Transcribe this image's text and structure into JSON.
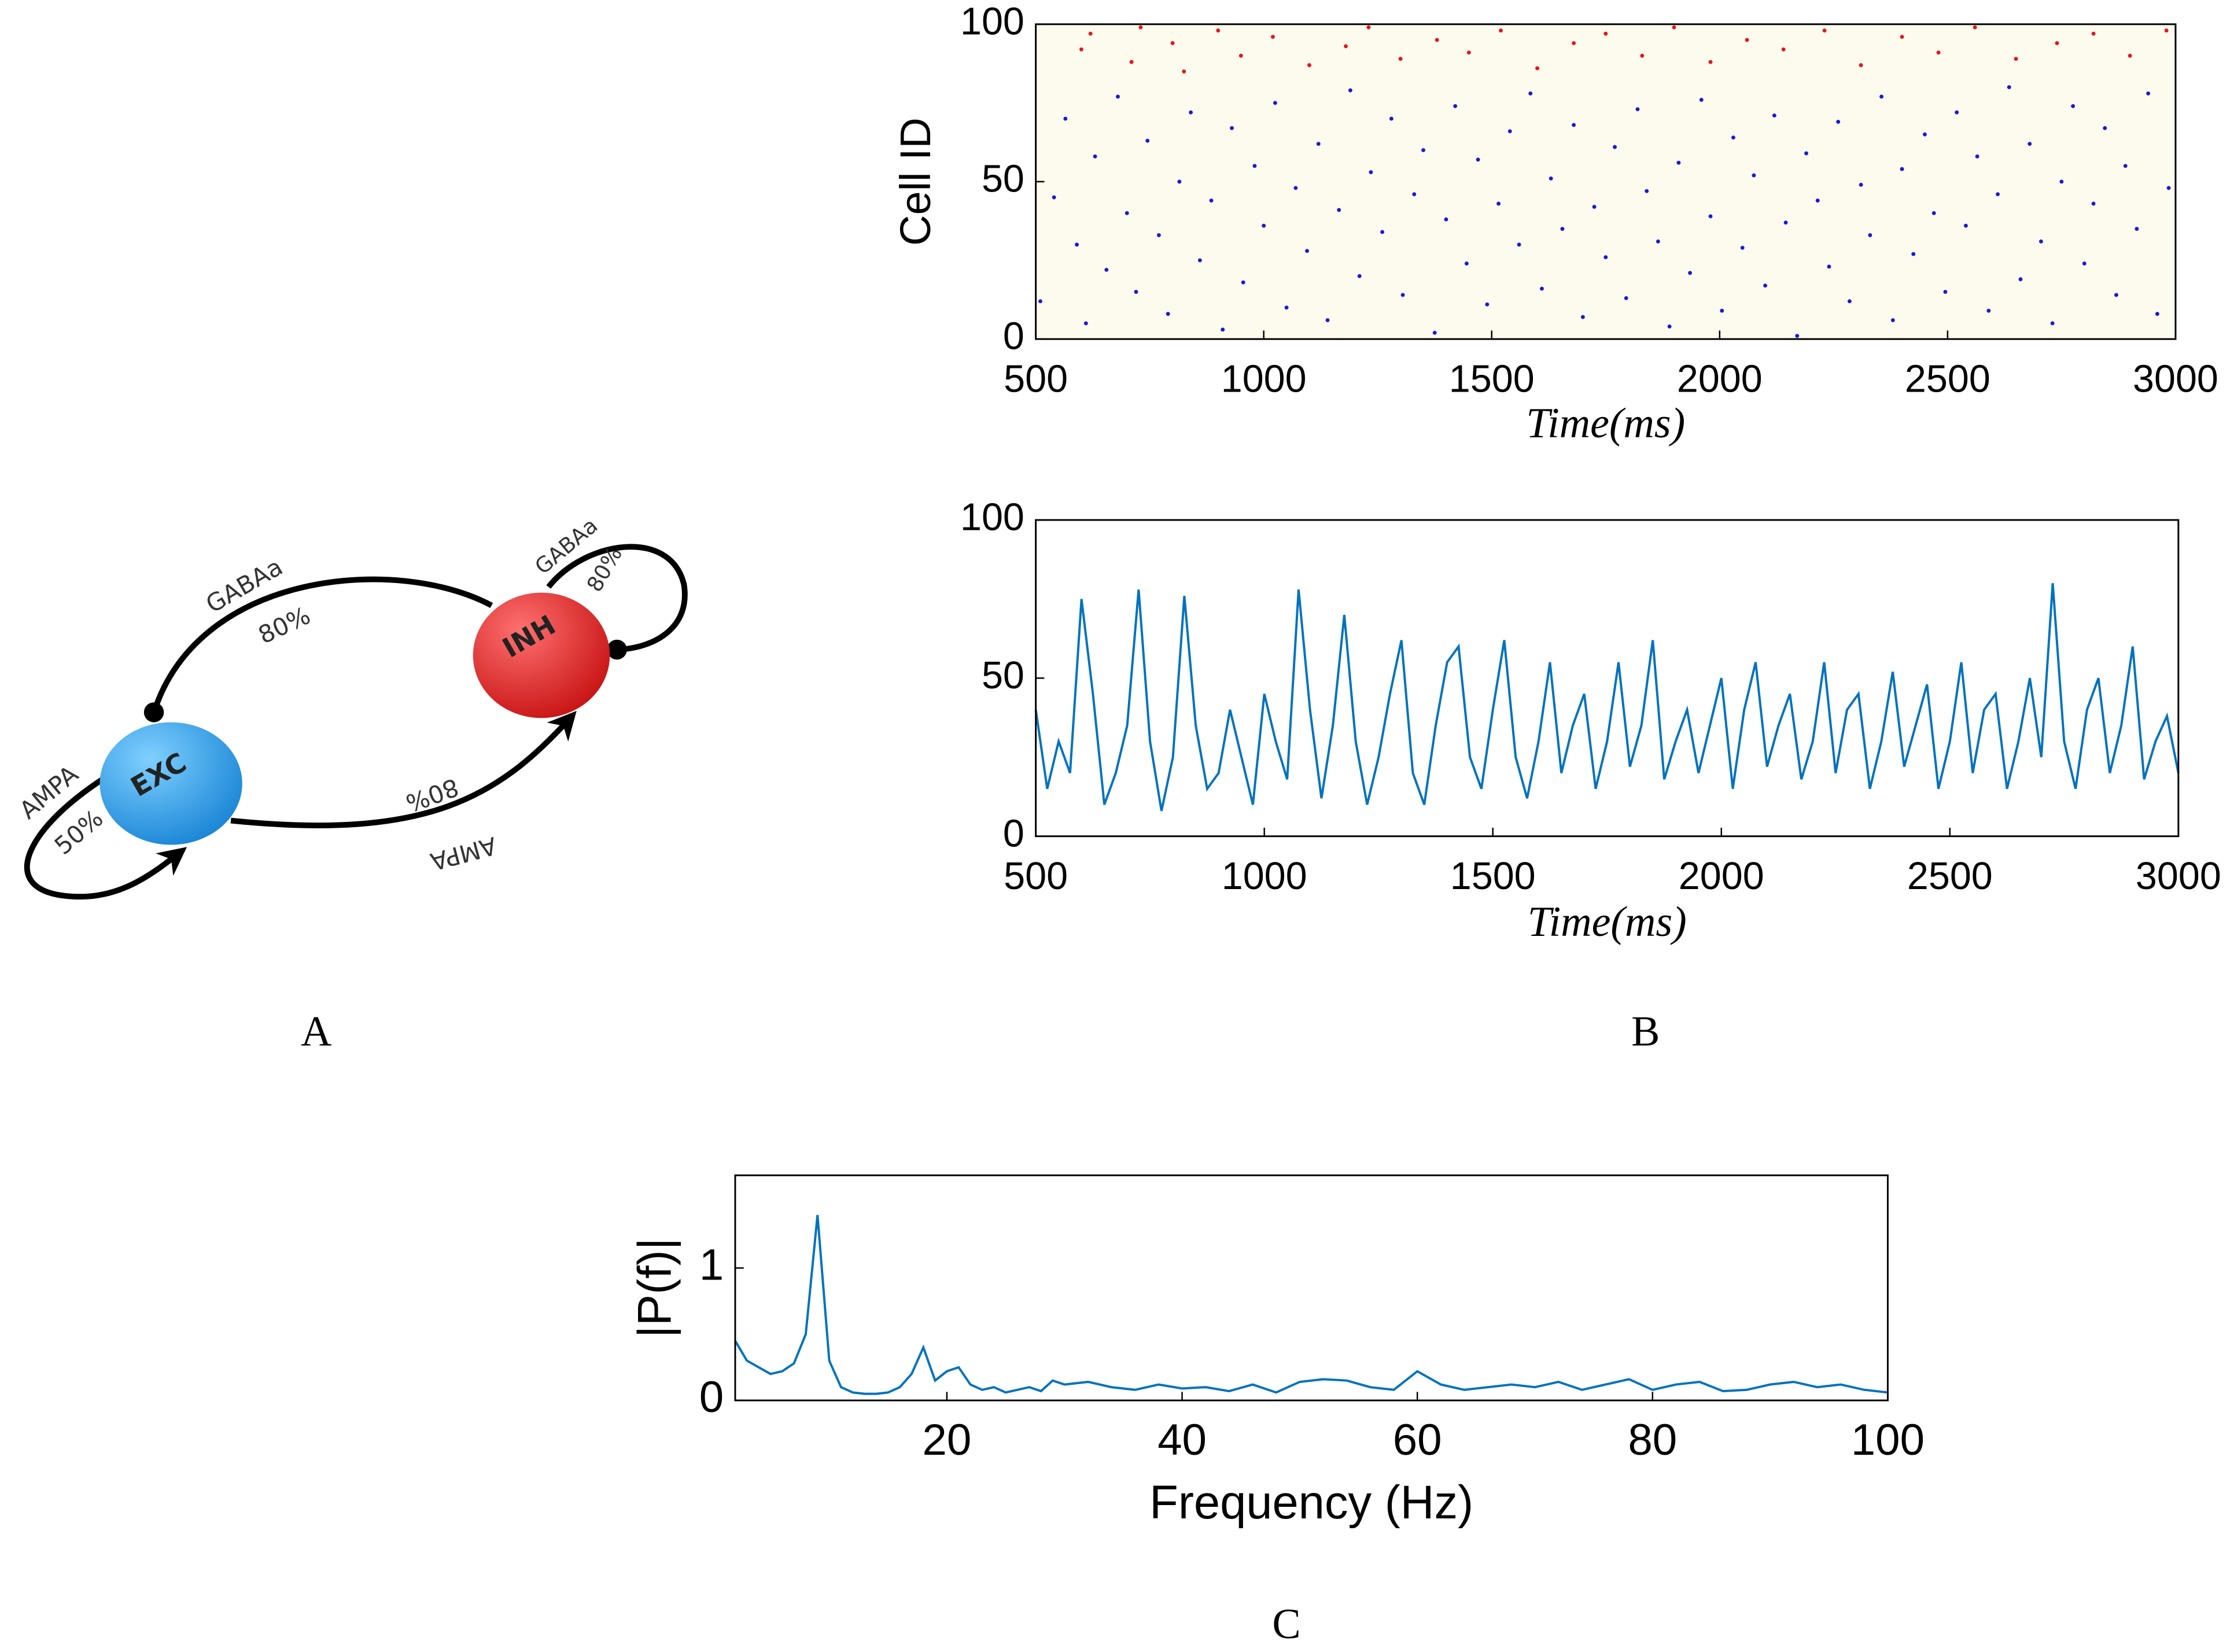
{
  "diagram": {
    "exc": "EXC",
    "inh": "INH",
    "gaba_top": "GABAa",
    "gaba_top_pct": "80%",
    "ampa_self": "AMPA",
    "ampa_self_pct": "50%",
    "ampa_cross_pct": "80%",
    "ampa_cross": "AMPA",
    "gaba_self": "GABAa",
    "gaba_self_pct": "80%"
  },
  "panel_labels": [
    "A",
    "B",
    "C"
  ],
  "chart_data": [
    {
      "type": "scatter",
      "ylabel": "Cell ID",
      "xlabel": "Time(ms)",
      "xlim": [
        500,
        3000
      ],
      "ylim": [
        0,
        100
      ],
      "xticks": [
        500,
        1000,
        1500,
        2000,
        2500,
        3000
      ],
      "yticks": [
        0,
        50,
        100
      ],
      "series": [
        {
          "color": "#1a1ad6",
          "x": [
            510,
            540,
            565,
            590,
            610,
            630,
            655,
            680,
            700,
            720,
            745,
            770,
            790,
            815,
            840,
            860,
            885,
            910,
            930,
            955,
            980,
            1000,
            1025,
            1050,
            1070,
            1095,
            1120,
            1140,
            1165,
            1190,
            1210,
            1235,
            1260,
            1280,
            1305,
            1330,
            1350,
            1375,
            1400,
            1420,
            1445,
            1470,
            1490,
            1515,
            1540,
            1560,
            1585,
            1610,
            1630,
            1655,
            1680,
            1700,
            1725,
            1750,
            1770,
            1795,
            1820,
            1840,
            1865,
            1890,
            1910,
            1935,
            1960,
            1980,
            2005,
            2030,
            2050,
            2075,
            2100,
            2120,
            2145,
            2170,
            2190,
            2215,
            2240,
            2260,
            2285,
            2310,
            2330,
            2355,
            2380,
            2400,
            2425,
            2450,
            2470,
            2495,
            2520,
            2540,
            2565,
            2590,
            2610,
            2635,
            2660,
            2680,
            2705,
            2730,
            2750,
            2775,
            2800,
            2820,
            2845,
            2870,
            2890,
            2915,
            2940,
            2960,
            2985
          ],
          "values": [
            12,
            45,
            70,
            30,
            5,
            58,
            22,
            77,
            40,
            15,
            63,
            33,
            8,
            50,
            72,
            25,
            44,
            3,
            67,
            18,
            55,
            36,
            75,
            10,
            48,
            28,
            62,
            6,
            41,
            79,
            20,
            53,
            34,
            70,
            14,
            46,
            60,
            2,
            38,
            74,
            24,
            57,
            11,
            43,
            66,
            30,
            78,
            16,
            51,
            35,
            68,
            7,
            42,
            26,
            61,
            13,
            73,
            47,
            31,
            4,
            56,
            21,
            76,
            39,
            9,
            64,
            29,
            52,
            17,
            71,
            37,
            1,
            59,
            44,
            23,
            69,
            12,
            49,
            33,
            77,
            6,
            54,
            27,
            65,
            40,
            15,
            72,
            36,
            58,
            9,
            46,
            80,
            19,
            62,
            31,
            5,
            50,
            74,
            24,
            43,
            67,
            14,
            55,
            35,
            78,
            8,
            48
          ]
        },
        {
          "color": "#e8141b",
          "x": [
            600,
            620,
            710,
            730,
            800,
            825,
            900,
            950,
            1020,
            1100,
            1180,
            1230,
            1300,
            1380,
            1450,
            1520,
            1600,
            1680,
            1750,
            1830,
            1900,
            1980,
            2060,
            2140,
            2230,
            2310,
            2400,
            2480,
            2560,
            2650,
            2740,
            2820,
            2900,
            2980
          ],
          "values": [
            92,
            97,
            88,
            99,
            94,
            85,
            98,
            90,
            96,
            87,
            93,
            99,
            89,
            95,
            91,
            98,
            86,
            94,
            97,
            90,
            99,
            88,
            95,
            92,
            98,
            87,
            96,
            91,
            99,
            89,
            94,
            97,
            90,
            98
          ]
        }
      ]
    },
    {
      "type": "line",
      "xlabel": "Time(ms)",
      "color": "#0072bd",
      "xlim": [
        500,
        3000
      ],
      "ylim": [
        0,
        100
      ],
      "xticks": [
        500,
        1000,
        1500,
        2000,
        2500,
        3000
      ],
      "yticks": [
        0,
        50,
        100
      ],
      "x": [
        500,
        525,
        550,
        575,
        600,
        625,
        650,
        675,
        700,
        725,
        750,
        775,
        800,
        825,
        850,
        875,
        900,
        925,
        950,
        975,
        1000,
        1025,
        1050,
        1075,
        1100,
        1125,
        1150,
        1175,
        1200,
        1225,
        1250,
        1275,
        1300,
        1325,
        1350,
        1375,
        1400,
        1425,
        1450,
        1475,
        1500,
        1525,
        1550,
        1575,
        1600,
        1625,
        1650,
        1675,
        1700,
        1725,
        1750,
        1775,
        1800,
        1825,
        1850,
        1875,
        1900,
        1925,
        1950,
        1975,
        2000,
        2025,
        2050,
        2075,
        2100,
        2125,
        2150,
        2175,
        2200,
        2225,
        2250,
        2275,
        2300,
        2325,
        2350,
        2375,
        2400,
        2425,
        2450,
        2475,
        2500,
        2525,
        2550,
        2575,
        2600,
        2625,
        2650,
        2675,
        2700,
        2725,
        2750,
        2775,
        2800,
        2825,
        2850,
        2875,
        2900,
        2925,
        2950,
        2975,
        3000
      ],
      "values": [
        40,
        15,
        30,
        20,
        75,
        45,
        10,
        20,
        35,
        78,
        30,
        8,
        25,
        76,
        35,
        15,
        20,
        40,
        25,
        10,
        45,
        30,
        18,
        78,
        40,
        12,
        35,
        70,
        30,
        10,
        25,
        45,
        62,
        20,
        10,
        35,
        55,
        60,
        25,
        15,
        40,
        62,
        25,
        12,
        30,
        55,
        20,
        35,
        45,
        15,
        30,
        55,
        22,
        35,
        62,
        18,
        30,
        40,
        20,
        35,
        50,
        15,
        40,
        55,
        22,
        35,
        45,
        18,
        30,
        55,
        20,
        40,
        45,
        15,
        30,
        52,
        22,
        35,
        48,
        15,
        30,
        55,
        20,
        40,
        45,
        15,
        30,
        50,
        25,
        80,
        30,
        15,
        40,
        50,
        20,
        35,
        60,
        18,
        30,
        38,
        20
      ]
    },
    {
      "type": "line",
      "xlabel": "Frequency (Hz)",
      "ylabel": "|P(f)|",
      "color": "#0072bd",
      "xlim": [
        2,
        100
      ],
      "ylim": [
        0,
        1.7
      ],
      "xticks": [
        20,
        40,
        60,
        80,
        100
      ],
      "yticks": [
        0,
        1
      ],
      "x": [
        2,
        3,
        4,
        5,
        6,
        7,
        8,
        9,
        10,
        11,
        12,
        13,
        14,
        15,
        16,
        17,
        18,
        19,
        20,
        21,
        22,
        23,
        24,
        25,
        26,
        27,
        28,
        29,
        30,
        32,
        34,
        36,
        38,
        40,
        42,
        44,
        46,
        48,
        50,
        52,
        54,
        56,
        58,
        60,
        62,
        64,
        66,
        68,
        70,
        72,
        74,
        76,
        78,
        80,
        82,
        84,
        86,
        88,
        90,
        92,
        94,
        96,
        98,
        100
      ],
      "values": [
        0.45,
        0.3,
        0.25,
        0.2,
        0.22,
        0.28,
        0.5,
        1.4,
        0.3,
        0.1,
        0.06,
        0.05,
        0.05,
        0.06,
        0.1,
        0.2,
        0.4,
        0.15,
        0.22,
        0.25,
        0.12,
        0.08,
        0.1,
        0.06,
        0.08,
        0.1,
        0.07,
        0.15,
        0.12,
        0.14,
        0.1,
        0.08,
        0.12,
        0.09,
        0.1,
        0.07,
        0.12,
        0.06,
        0.14,
        0.16,
        0.15,
        0.1,
        0.08,
        0.22,
        0.12,
        0.08,
        0.1,
        0.12,
        0.1,
        0.14,
        0.08,
        0.12,
        0.16,
        0.08,
        0.12,
        0.14,
        0.07,
        0.08,
        0.12,
        0.14,
        0.1,
        0.12,
        0.08,
        0.06
      ]
    }
  ]
}
